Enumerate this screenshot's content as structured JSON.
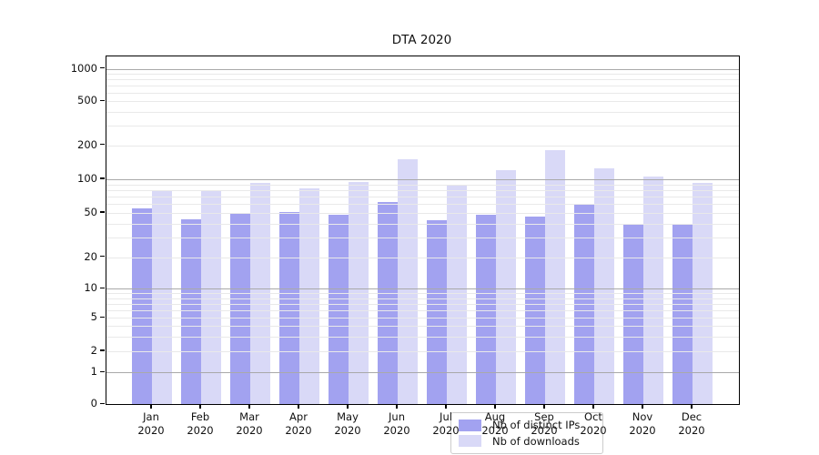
{
  "title": "DTA 2020",
  "chart_data": {
    "type": "bar",
    "title": "DTA 2020",
    "categories": [
      "Jan 2020",
      "Feb 2020",
      "Mar 2020",
      "Apr 2020",
      "May 2020",
      "Jun 2020",
      "Jul 2020",
      "Aug 2020",
      "Sep 2020",
      "Oct 2020",
      "Nov 2020",
      "Dec 2020"
    ],
    "series": [
      {
        "name": "Nb of distinct IPs",
        "color": "#a2a2f0",
        "values": [
          55,
          44,
          49,
          51,
          48,
          63,
          43,
          48,
          46,
          60,
          40,
          40
        ]
      },
      {
        "name": "Nb of downloads",
        "color": "#d9d9f7",
        "values": [
          80,
          78,
          93,
          83,
          94,
          150,
          87,
          121,
          182,
          125,
          106,
          93
        ]
      }
    ],
    "xlabel": "",
    "ylabel": "",
    "yscale": "symlog",
    "yticks": [
      0,
      1,
      2,
      5,
      10,
      20,
      50,
      100,
      200,
      500,
      1000
    ],
    "ylim": [
      0,
      1300
    ],
    "grid": "horizontal major+minor",
    "legend_position": "lower center"
  },
  "colors": {
    "major_grid": "#a9a9a9",
    "minor_grid": "#e9e9e9",
    "spine": "#000000",
    "text": "#111111",
    "legend_bg": "rgba(255,255,255,0.8)",
    "legend_border": "#cccccc"
  }
}
